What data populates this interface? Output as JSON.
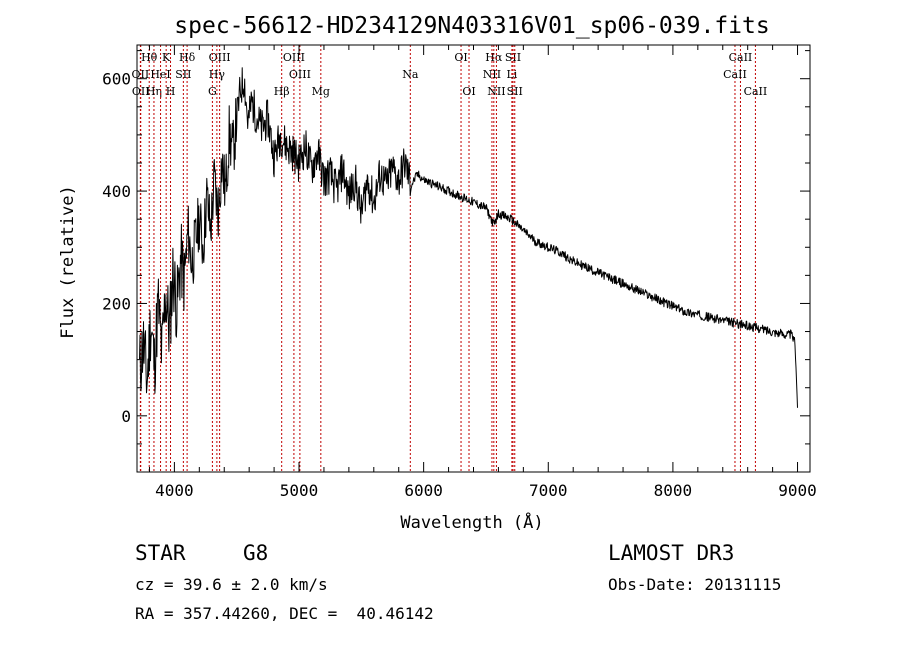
{
  "chart_data": {
    "type": "line",
    "title": "spec-56612-HD234129N403316V01_sp06-039.fits",
    "xlabel": "Wavelength (Å)",
    "ylabel": "Flux (relative)",
    "xlim": [
      3700,
      9100
    ],
    "ylim": [
      -100,
      660
    ],
    "xticks": [
      4000,
      5000,
      6000,
      7000,
      8000,
      9000
    ],
    "yticks": [
      0,
      200,
      400,
      600
    ],
    "x_minor_step": 200,
    "y_minor_step": 50,
    "series": [
      {
        "name": "spectrum",
        "x": [
          3720,
          3750,
          3780,
          3810,
          3840,
          3870,
          3900,
          3930,
          3960,
          3990,
          4020,
          4050,
          4080,
          4110,
          4140,
          4170,
          4200,
          4230,
          4260,
          4290,
          4320,
          4350,
          4380,
          4410,
          4440,
          4470,
          4500,
          4530,
          4560,
          4590,
          4620,
          4650,
          4700,
          4750,
          4800,
          4850,
          4900,
          4950,
          5000,
          5050,
          5100,
          5150,
          5200,
          5250,
          5300,
          5350,
          5400,
          5450,
          5500,
          5550,
          5600,
          5650,
          5700,
          5750,
          5800,
          5850,
          5900,
          5950,
          6000,
          6100,
          6200,
          6300,
          6400,
          6500,
          6563,
          6600,
          6700,
          6800,
          6900,
          7000,
          7100,
          7200,
          7300,
          7400,
          7500,
          7600,
          7700,
          7800,
          7900,
          8000,
          8100,
          8200,
          8300,
          8400,
          8500,
          8600,
          8700,
          8800,
          8900,
          8950,
          8980,
          9000
        ],
        "y": [
          80,
          130,
          60,
          170,
          90,
          200,
          110,
          220,
          150,
          260,
          190,
          280,
          240,
          330,
          270,
          310,
          350,
          300,
          390,
          330,
          420,
          360,
          450,
          400,
          500,
          470,
          530,
          580,
          600,
          520,
          560,
          540,
          510,
          530,
          460,
          500,
          480,
          470,
          450,
          480,
          440,
          470,
          420,
          430,
          400,
          440,
          390,
          420,
          360,
          420,
          380,
          430,
          410,
          440,
          420,
          450,
          410,
          430,
          420,
          410,
          400,
          390,
          380,
          370,
          340,
          360,
          350,
          330,
          310,
          300,
          290,
          275,
          265,
          255,
          245,
          235,
          225,
          215,
          205,
          195,
          185,
          180,
          175,
          170,
          165,
          160,
          155,
          150,
          145,
          145,
          130,
          20
        ],
        "color": "#000000"
      }
    ],
    "line_markers": [
      {
        "name": "Hθ",
        "x": 3798,
        "row": 1
      },
      {
        "name": "OII",
        "x": 3727,
        "row": 2
      },
      {
        "name": "OII",
        "x": 3730,
        "row": 3
      },
      {
        "name": "Hη",
        "x": 3836,
        "row": 3
      },
      {
        "name": "HeI",
        "x": 3889,
        "row": 2
      },
      {
        "name": "K",
        "x": 3934,
        "row": 1
      },
      {
        "name": "H",
        "x": 3969,
        "row": 3
      },
      {
        "name": "SII",
        "x": 4072,
        "row": 2
      },
      {
        "name": "Hδ",
        "x": 4102,
        "row": 1
      },
      {
        "name": "OIII",
        "x": 4363,
        "row": 1
      },
      {
        "name": "Hγ",
        "x": 4341,
        "row": 2
      },
      {
        "name": "G",
        "x": 4305,
        "row": 3
      },
      {
        "name": "Hβ",
        "x": 4861,
        "row": 3
      },
      {
        "name": "OIII",
        "x": 4959,
        "row": 1
      },
      {
        "name": "OIII",
        "x": 5007,
        "row": 2
      },
      {
        "name": "Mg",
        "x": 5175,
        "row": 3
      },
      {
        "name": "Na",
        "x": 5893,
        "row": 2
      },
      {
        "name": "OI",
        "x": 6300,
        "row": 1
      },
      {
        "name": "OI",
        "x": 6364,
        "row": 3
      },
      {
        "name": "Hα",
        "x": 6563,
        "row": 1
      },
      {
        "name": "NII",
        "x": 6548,
        "row": 2
      },
      {
        "name": "NII",
        "x": 6584,
        "row": 3
      },
      {
        "name": "SII",
        "x": 6717,
        "row": 1
      },
      {
        "name": "Li",
        "x": 6708,
        "row": 2
      },
      {
        "name": "SII",
        "x": 6731,
        "row": 3
      },
      {
        "name": "CaII",
        "x": 8542,
        "row": 1
      },
      {
        "name": "CaII",
        "x": 8498,
        "row": 2
      },
      {
        "name": "CaII",
        "x": 8662,
        "row": 3
      }
    ]
  },
  "info": {
    "object_type": "STAR",
    "subclass": "G8",
    "redshift": "cz = 39.6 ± 2.0 km/s",
    "coords": "RA = 357.44260, DEC =  40.46142",
    "survey": "LAMOST DR3",
    "obs_date": "Obs-Date: 20131115"
  }
}
